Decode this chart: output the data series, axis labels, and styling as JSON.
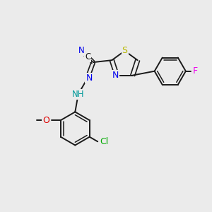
{
  "background_color": "#ebebeb",
  "bond_color": "#1a1a1a",
  "S_color": "#b8b800",
  "N_color": "#0000ee",
  "NH_color": "#009999",
  "O_color": "#dd0000",
  "F_color": "#ee00ee",
  "Cl_color": "#00aa00",
  "C_color": "#1a1a1a",
  "figsize": [
    3.0,
    3.0
  ],
  "dpi": 100,
  "xlim": [
    0,
    10
  ],
  "ylim": [
    0,
    10
  ]
}
